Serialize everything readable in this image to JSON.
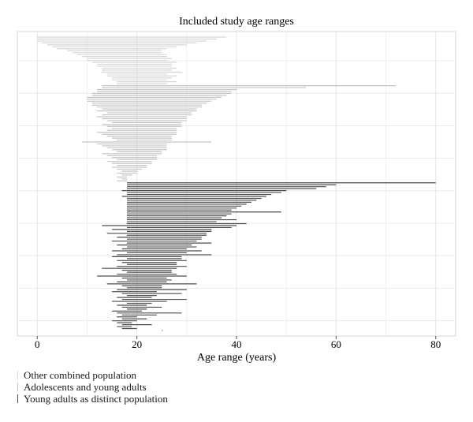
{
  "chart_data": {
    "type": "range",
    "title": "Included study age ranges",
    "xlabel": "Age range (years)",
    "ylabel": "",
    "xlim": [
      -4,
      84
    ],
    "xticks": [
      0,
      20,
      40,
      60,
      80
    ],
    "grid": true,
    "legend_position": "bottom-left",
    "series": [
      {
        "name": "Other combined population",
        "color": "#d6d6d6",
        "ranges": [
          [
            0,
            38
          ],
          [
            0,
            36
          ],
          [
            0,
            34
          ],
          [
            1,
            32
          ],
          [
            2,
            30
          ],
          [
            3,
            28
          ],
          [
            4,
            26
          ],
          [
            6,
            25
          ],
          [
            7,
            25
          ],
          [
            8,
            26
          ],
          [
            9,
            26
          ],
          [
            10,
            27
          ],
          [
            10,
            26
          ],
          [
            11,
            28
          ],
          [
            12,
            27
          ],
          [
            12,
            27
          ],
          [
            13,
            28
          ],
          [
            13,
            27
          ],
          [
            13,
            29
          ],
          [
            14,
            26
          ],
          [
            14,
            28
          ],
          [
            15,
            27
          ],
          [
            15,
            26
          ],
          [
            16,
            28
          ],
          [
            16,
            26
          ]
        ]
      },
      {
        "name": "Adolescents and young adults",
        "color": "#c4c4c4",
        "ranges": [
          [
            13,
            72
          ],
          [
            13,
            54
          ],
          [
            12,
            40
          ],
          [
            12,
            39
          ],
          [
            11,
            39
          ],
          [
            11,
            38
          ],
          [
            10,
            37
          ],
          [
            10,
            36
          ],
          [
            10,
            35
          ],
          [
            11,
            34
          ],
          [
            11,
            33
          ],
          [
            12,
            33
          ],
          [
            13,
            32
          ],
          [
            12,
            32
          ],
          [
            14,
            31
          ],
          [
            13,
            31
          ],
          [
            12,
            30
          ],
          [
            13,
            30
          ],
          [
            14,
            30
          ],
          [
            15,
            29
          ],
          [
            13,
            29
          ],
          [
            14,
            29
          ],
          [
            15,
            28
          ],
          [
            14,
            28
          ],
          [
            12,
            28
          ],
          [
            13,
            28
          ],
          [
            14,
            27
          ],
          [
            15,
            27
          ],
          [
            16,
            27
          ],
          [
            9,
            35
          ],
          [
            12,
            26
          ],
          [
            13,
            26
          ],
          [
            14,
            26
          ],
          [
            15,
            26
          ],
          [
            16,
            25
          ],
          [
            13,
            25
          ],
          [
            14,
            24
          ],
          [
            15,
            24
          ],
          [
            16,
            24
          ],
          [
            14,
            23
          ],
          [
            15,
            23
          ],
          [
            16,
            22
          ],
          [
            15,
            22
          ],
          [
            16,
            21
          ],
          [
            17,
            20
          ],
          [
            16,
            20
          ],
          [
            17,
            19
          ],
          [
            16,
            18
          ],
          [
            17,
            18
          ],
          [
            16,
            18
          ]
        ]
      },
      {
        "name": "Young adults as distinct population",
        "color": "#4d4d4d",
        "ranges": [
          [
            18,
            80
          ],
          [
            18,
            60
          ],
          [
            18,
            58
          ],
          [
            18,
            56
          ],
          [
            17,
            50
          ],
          [
            18,
            49
          ],
          [
            18,
            47
          ],
          [
            17,
            46
          ],
          [
            18,
            45
          ],
          [
            18,
            44
          ],
          [
            18,
            43
          ],
          [
            18,
            42
          ],
          [
            18,
            41
          ],
          [
            18,
            40
          ],
          [
            18,
            39
          ],
          [
            18,
            49
          ],
          [
            18,
            39
          ],
          [
            18,
            38
          ],
          [
            18,
            37
          ],
          [
            18,
            40
          ],
          [
            18,
            36
          ],
          [
            18,
            42
          ],
          [
            13,
            40
          ],
          [
            18,
            39
          ],
          [
            15,
            35
          ],
          [
            18,
            35
          ],
          [
            14,
            34
          ],
          [
            18,
            34
          ],
          [
            16,
            33
          ],
          [
            18,
            33
          ],
          [
            15,
            32
          ],
          [
            18,
            35
          ],
          [
            16,
            31
          ],
          [
            18,
            32
          ],
          [
            17,
            30
          ],
          [
            15,
            33
          ],
          [
            18,
            30
          ],
          [
            16,
            35
          ],
          [
            15,
            29
          ],
          [
            18,
            29
          ],
          [
            16,
            30
          ],
          [
            17,
            28
          ],
          [
            18,
            28
          ],
          [
            16,
            30
          ],
          [
            13,
            28
          ],
          [
            17,
            27
          ],
          [
            18,
            27
          ],
          [
            16,
            28
          ],
          [
            12,
            30
          ],
          [
            17,
            26
          ],
          [
            18,
            27
          ],
          [
            16,
            26
          ],
          [
            14,
            32
          ],
          [
            17,
            25
          ],
          [
            18,
            25
          ],
          [
            16,
            30
          ],
          [
            15,
            24
          ],
          [
            17,
            29
          ],
          [
            18,
            24
          ],
          [
            16,
            23
          ],
          [
            17,
            30
          ],
          [
            15,
            26
          ],
          [
            18,
            23
          ],
          [
            16,
            22
          ],
          [
            17,
            25
          ],
          [
            18,
            22
          ],
          [
            15,
            21
          ],
          [
            16,
            29
          ],
          [
            17,
            24
          ],
          [
            16,
            20
          ],
          [
            17,
            22
          ],
          [
            15,
            20
          ],
          [
            16,
            19
          ],
          [
            17,
            23
          ],
          [
            16,
            19
          ],
          [
            17,
            20
          ],
          [
            25,
            25
          ]
        ]
      }
    ]
  }
}
